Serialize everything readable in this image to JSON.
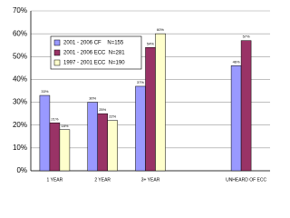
{
  "chart_data": {
    "type": "bar",
    "categories": [
      "1 YEAR",
      "2 YEAR",
      "3+ YEAR",
      null,
      "UNHEARD OF ECC"
    ],
    "series": [
      {
        "name": "2001 - 2006 CF    N=155",
        "color": "#9999ff",
        "values": [
          33,
          30,
          37,
          null,
          46
        ],
        "value_labels": [
          "33%",
          "30%",
          "37%",
          null,
          "46%"
        ]
      },
      {
        "name": "2001 - 2006 ECC  N=281",
        "color": "#993366",
        "values": [
          21,
          25,
          54,
          null,
          57
        ],
        "value_labels": [
          "21%",
          "25%",
          "54%",
          null,
          "57%"
        ]
      },
      {
        "name": "1997 - 2001 ECC  N=190",
        "color": "#ffffcc",
        "values": [
          18,
          22,
          60,
          null,
          null
        ],
        "value_labels": [
          "18%",
          "22%",
          "60%",
          null,
          null
        ]
      }
    ],
    "ylim": [
      0,
      70
    ],
    "yticks": [
      {
        "value": 0,
        "label": "0%"
      },
      {
        "value": 10,
        "label": "10%"
      },
      {
        "value": 20,
        "label": "20%"
      },
      {
        "value": 30,
        "label": "30%"
      },
      {
        "value": 40,
        "label": "40%"
      },
      {
        "value": 50,
        "label": "50%"
      },
      {
        "value": 60,
        "label": "60%"
      },
      {
        "value": 70,
        "label": "70%"
      }
    ],
    "grid": true,
    "legend": "upper left"
  }
}
